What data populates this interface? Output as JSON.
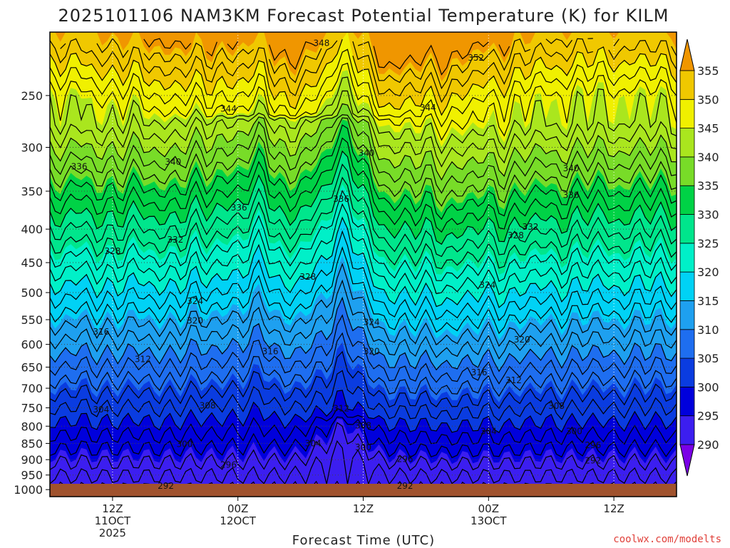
{
  "chart_data": {
    "type": "heatmap",
    "title": "2025101106 NAM3KM Forecast Potential Temperature (K) for KILM",
    "xlabel": "Forecast Time (UTC)",
    "ylabel": "",
    "y_scale": "pressure (log, reversed)",
    "y_ticks": [
      250,
      300,
      350,
      400,
      450,
      500,
      550,
      600,
      650,
      700,
      750,
      800,
      850,
      900,
      950,
      1000
    ],
    "x_ticks": [
      {
        "hour": 6,
        "lines": [
          "12Z",
          "11OCT",
          "2025"
        ]
      },
      {
        "hour": 18,
        "lines": [
          "00Z",
          "12OCT"
        ]
      },
      {
        "hour": 30,
        "lines": [
          "12Z"
        ]
      },
      {
        "hour": 42,
        "lines": [
          "00Z",
          "13OCT"
        ]
      },
      {
        "hour": 54,
        "lines": [
          "12Z"
        ]
      }
    ],
    "x_range_hours": [
      0,
      60
    ],
    "y_range_hpa": [
      200,
      1025
    ],
    "colorbar": {
      "levels": [
        290,
        295,
        300,
        305,
        310,
        315,
        320,
        325,
        330,
        335,
        340,
        345,
        350,
        355
      ],
      "colors": [
        "#7a00e6",
        "#3c1ef0",
        "#0000dc",
        "#0a3ce0",
        "#1e6ef0",
        "#1ea0f0",
        "#00d2f5",
        "#00f0c8",
        "#00e68c",
        "#00d246",
        "#78dc28",
        "#aae61e",
        "#f0f000",
        "#f0c800",
        "#f09600"
      ]
    },
    "contour_labels": [
      {
        "value": "348",
        "hour": 26.0,
        "p": 208
      },
      {
        "value": "352",
        "hour": 40.8,
        "p": 219
      },
      {
        "value": "344",
        "hour": 17.1,
        "p": 262
      },
      {
        "value": "344",
        "hour": 36.2,
        "p": 261
      },
      {
        "value": "340",
        "hour": 11.8,
        "p": 316
      },
      {
        "value": "340",
        "hour": 30.3,
        "p": 306
      },
      {
        "value": "340",
        "hour": 49.9,
        "p": 323
      },
      {
        "value": "336",
        "hour": 2.8,
        "p": 321
      },
      {
        "value": "336",
        "hour": 27.9,
        "p": 360
      },
      {
        "value": "336",
        "hour": 49.9,
        "p": 355
      },
      {
        "value": "336",
        "hour": 18.1,
        "p": 371
      },
      {
        "value": "332",
        "hour": 12.0,
        "p": 415
      },
      {
        "value": "332",
        "hour": 46.0,
        "p": 397
      },
      {
        "value": "328",
        "hour": 6.0,
        "p": 432
      },
      {
        "value": "328",
        "hour": 44.6,
        "p": 409
      },
      {
        "value": "328",
        "hour": 24.7,
        "p": 473
      },
      {
        "value": "324",
        "hour": 13.9,
        "p": 515
      },
      {
        "value": "324",
        "hour": 30.8,
        "p": 555
      },
      {
        "value": "324",
        "hour": 41.9,
        "p": 487
      },
      {
        "value": "320",
        "hour": 13.9,
        "p": 552
      },
      {
        "value": "320",
        "hour": 30.8,
        "p": 615
      },
      {
        "value": "320",
        "hour": 45.2,
        "p": 590
      },
      {
        "value": "316",
        "hour": 4.9,
        "p": 574
      },
      {
        "value": "316",
        "hour": 21.1,
        "p": 615
      },
      {
        "value": "316",
        "hour": 41.1,
        "p": 662
      },
      {
        "value": "312",
        "hour": 8.9,
        "p": 632
      },
      {
        "value": "312",
        "hour": 27.9,
        "p": 752
      },
      {
        "value": "312",
        "hour": 44.4,
        "p": 681
      },
      {
        "value": "308",
        "hour": 15.1,
        "p": 744
      },
      {
        "value": "308",
        "hour": 30.0,
        "p": 798
      },
      {
        "value": "308",
        "hour": 48.5,
        "p": 745
      },
      {
        "value": "304",
        "hour": 4.9,
        "p": 755
      },
      {
        "value": "304",
        "hour": 25.2,
        "p": 850
      },
      {
        "value": "304",
        "hour": 42.0,
        "p": 815
      },
      {
        "value": "300",
        "hour": 12.9,
        "p": 852
      },
      {
        "value": "300",
        "hour": 30.0,
        "p": 862
      },
      {
        "value": "300",
        "hour": 50.2,
        "p": 815
      },
      {
        "value": "296",
        "hour": 17.1,
        "p": 917
      },
      {
        "value": "296",
        "hour": 34.0,
        "p": 898
      },
      {
        "value": "296",
        "hour": 52.0,
        "p": 855
      },
      {
        "value": "292",
        "hour": 11.1,
        "p": 987
      },
      {
        "value": "292",
        "hour": 34.0,
        "p": 987
      },
      {
        "value": "292",
        "hour": 52.0,
        "p": 903
      }
    ]
  },
  "credit": "coolwx.com/modelts"
}
